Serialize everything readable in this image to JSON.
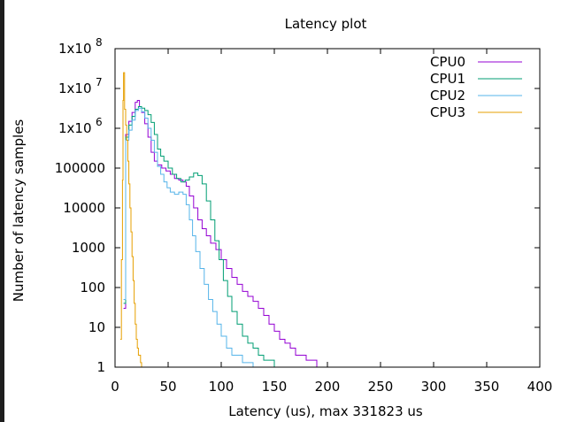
{
  "chart_data": {
    "type": "line",
    "title": "Latency plot",
    "xlabel": "Latency (us), max 331823 us",
    "ylabel": "Number of latency samples",
    "x_scale": "linear",
    "y_scale": "log",
    "xlim": [
      0,
      400
    ],
    "ylim": [
      1,
      100000000
    ],
    "grid": false,
    "legend_position": "top-right",
    "x_ticks": [
      "0",
      "50",
      "100",
      "150",
      "200",
      "250",
      "300",
      "350",
      "400"
    ],
    "y_ticks": [
      {
        "base": "1",
        "sup": ""
      },
      {
        "base": "10",
        "sup": ""
      },
      {
        "base": "100",
        "sup": ""
      },
      {
        "base": "1000",
        "sup": ""
      },
      {
        "base": "10000",
        "sup": ""
      },
      {
        "base": "100000",
        "sup": ""
      },
      {
        "base": "1x10",
        "sup": "6"
      },
      {
        "base": "1x10",
        "sup": "7"
      },
      {
        "base": "1x10",
        "sup": "8"
      }
    ],
    "series": [
      {
        "name": "CPU0",
        "color": "#9400d3",
        "points": [
          [
            8,
            30
          ],
          [
            10,
            700000
          ],
          [
            13,
            1500000
          ],
          [
            16,
            2500000
          ],
          [
            19,
            4500000
          ],
          [
            21,
            5000000
          ],
          [
            23,
            3500000
          ],
          [
            25,
            2500000
          ],
          [
            28,
            1300000
          ],
          [
            31,
            600000
          ],
          [
            34,
            250000
          ],
          [
            37,
            150000
          ],
          [
            40,
            120000
          ],
          [
            44,
            100000
          ],
          [
            48,
            85000
          ],
          [
            52,
            70000
          ],
          [
            56,
            55000
          ],
          [
            60,
            50000
          ],
          [
            64,
            45000
          ],
          [
            67,
            35000
          ],
          [
            70,
            20000
          ],
          [
            74,
            10000
          ],
          [
            78,
            5000
          ],
          [
            82,
            3000
          ],
          [
            86,
            2000
          ],
          [
            90,
            1300
          ],
          [
            95,
            900
          ],
          [
            100,
            500
          ],
          [
            105,
            300
          ],
          [
            110,
            180
          ],
          [
            115,
            120
          ],
          [
            120,
            80
          ],
          [
            125,
            60
          ],
          [
            130,
            45
          ],
          [
            135,
            30
          ],
          [
            140,
            20
          ],
          [
            145,
            12
          ],
          [
            150,
            8
          ],
          [
            155,
            5
          ],
          [
            160,
            4
          ],
          [
            165,
            3
          ],
          [
            170,
            2
          ],
          [
            180,
            1.5
          ],
          [
            190,
            1
          ]
        ]
      },
      {
        "name": "CPU1",
        "color": "#009e73",
        "points": [
          [
            8,
            40
          ],
          [
            10,
            600000
          ],
          [
            13,
            1200000
          ],
          [
            16,
            2000000
          ],
          [
            19,
            3000000
          ],
          [
            22,
            3500000
          ],
          [
            25,
            3200000
          ],
          [
            28,
            2800000
          ],
          [
            31,
            2200000
          ],
          [
            34,
            1400000
          ],
          [
            37,
            700000
          ],
          [
            40,
            300000
          ],
          [
            43,
            200000
          ],
          [
            46,
            150000
          ],
          [
            50,
            100000
          ],
          [
            54,
            70000
          ],
          [
            58,
            55000
          ],
          [
            62,
            45000
          ],
          [
            66,
            50000
          ],
          [
            70,
            60000
          ],
          [
            74,
            75000
          ],
          [
            78,
            65000
          ],
          [
            82,
            40000
          ],
          [
            86,
            15000
          ],
          [
            90,
            5000
          ],
          [
            94,
            1500
          ],
          [
            98,
            500
          ],
          [
            102,
            150
          ],
          [
            106,
            60
          ],
          [
            110,
            25
          ],
          [
            115,
            12
          ],
          [
            120,
            6
          ],
          [
            125,
            4
          ],
          [
            130,
            3
          ],
          [
            135,
            2
          ],
          [
            140,
            1.5
          ],
          [
            150,
            1
          ]
        ]
      },
      {
        "name": "CPU2",
        "color": "#56b4e9",
        "points": [
          [
            8,
            50
          ],
          [
            10,
            500000
          ],
          [
            13,
            900000
          ],
          [
            16,
            1600000
          ],
          [
            19,
            2800000
          ],
          [
            22,
            3200000
          ],
          [
            25,
            2600000
          ],
          [
            28,
            1800000
          ],
          [
            31,
            1000000
          ],
          [
            34,
            500000
          ],
          [
            37,
            250000
          ],
          [
            40,
            110000
          ],
          [
            43,
            70000
          ],
          [
            46,
            45000
          ],
          [
            49,
            32000
          ],
          [
            52,
            25000
          ],
          [
            56,
            22000
          ],
          [
            60,
            25000
          ],
          [
            64,
            22000
          ],
          [
            67,
            12000
          ],
          [
            70,
            5000
          ],
          [
            73,
            2000
          ],
          [
            76,
            800
          ],
          [
            80,
            300
          ],
          [
            84,
            120
          ],
          [
            88,
            50
          ],
          [
            92,
            25
          ],
          [
            96,
            12
          ],
          [
            100,
            6
          ],
          [
            105,
            3
          ],
          [
            110,
            2
          ],
          [
            120,
            1.3
          ],
          [
            130,
            1
          ]
        ]
      },
      {
        "name": "CPU3",
        "color": "#e69f00",
        "points": [
          [
            5,
            5
          ],
          [
            6,
            500
          ],
          [
            7,
            50000
          ],
          [
            7.5,
            5000000
          ],
          [
            8,
            25000000
          ],
          [
            9,
            3000000
          ],
          [
            10,
            1200000
          ],
          [
            11,
            500000
          ],
          [
            12,
            150000
          ],
          [
            13,
            40000
          ],
          [
            14,
            10000
          ],
          [
            15,
            2500
          ],
          [
            16,
            600
          ],
          [
            17,
            150
          ],
          [
            18,
            40
          ],
          [
            19,
            12
          ],
          [
            20,
            5
          ],
          [
            21,
            3
          ],
          [
            22,
            2
          ],
          [
            24,
            1.3
          ],
          [
            25,
            1
          ]
        ]
      }
    ]
  }
}
